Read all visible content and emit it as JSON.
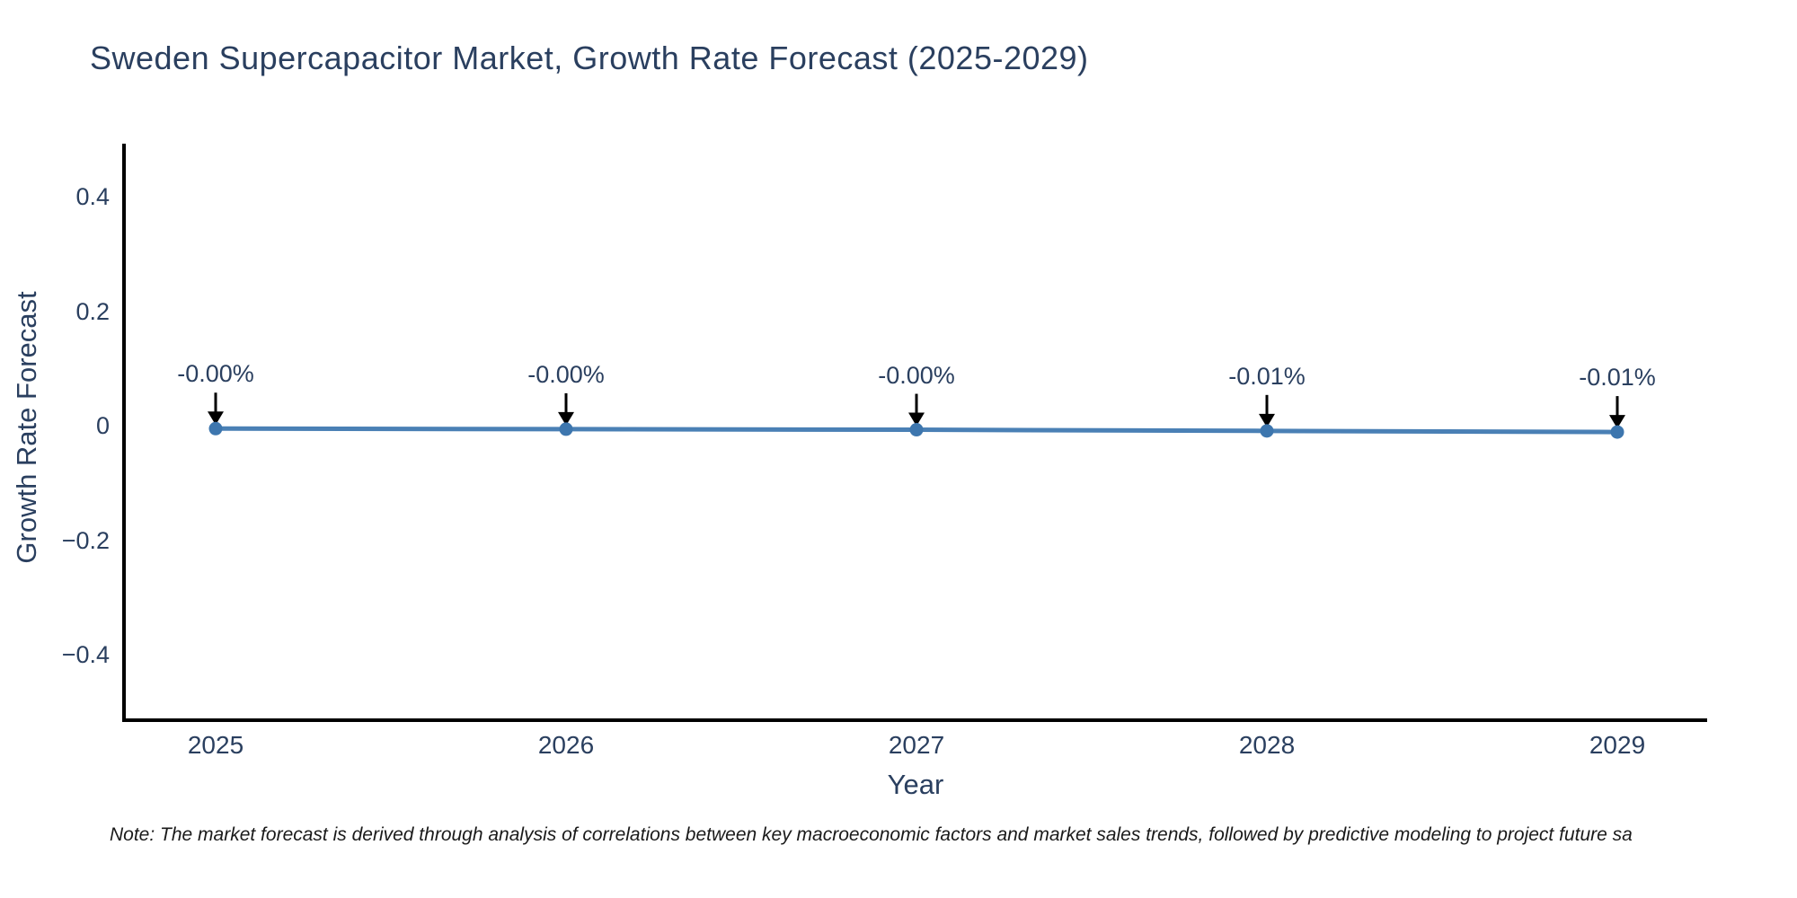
{
  "title": {
    "text": "Sweden Supercapacitor Market, Growth Rate Forecast (2025-2029)"
  },
  "chart_data": {
    "type": "line",
    "x": [
      "2025",
      "2026",
      "2027",
      "2028",
      "2029"
    ],
    "series": [
      {
        "name": "Growth Rate Forecast",
        "values": [
          -0.002,
          -0.003,
          -0.004,
          -0.006,
          -0.008
        ]
      }
    ],
    "point_labels": [
      "-0.00%",
      "-0.00%",
      "-0.00%",
      "-0.01%",
      "-0.01%"
    ],
    "xlabel": "Year",
    "ylabel": "Growth Rate Forecast",
    "ylim": [
      -0.5,
      0.5
    ],
    "yticks": {
      "values": [
        0.4,
        0.2,
        0,
        -0.2,
        -0.4
      ],
      "labels": [
        "0.4",
        "0.2",
        "0",
        "−0.2",
        "−0.4"
      ]
    },
    "grid": false,
    "legend": false,
    "line_color": "#4a80b5",
    "marker_color": "#3d76ae",
    "annotation_arrow_color": "#000000",
    "axis_color": "#000000",
    "text_color": "#2a3f5f"
  },
  "note": {
    "text": "Note: The market forecast is derived through analysis of correlations between key macroeconomic factors and market sales trends, followed by predictive modeling to project future sa"
  }
}
